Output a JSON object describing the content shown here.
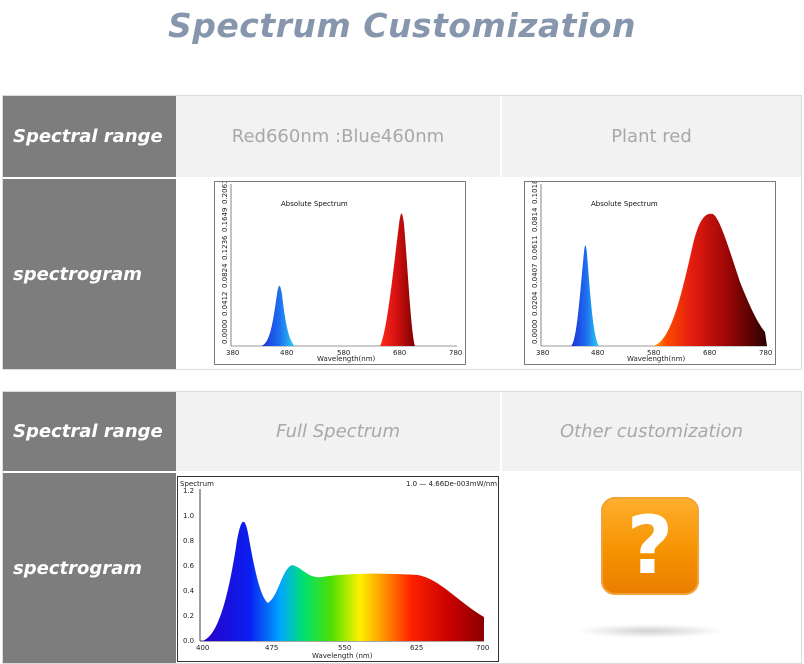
{
  "page": {
    "title": "Spectrum Customization"
  },
  "sections": [
    {
      "range_label": "Spectral range",
      "spectrogram_label": "spectrogram",
      "options": [
        {
          "range": "Red660nm :Blue460nm"
        },
        {
          "range": "Plant red"
        }
      ]
    },
    {
      "range_label": "Spectral range",
      "spectrogram_label": "spectrogram",
      "options": [
        {
          "range": "Full Spectrum"
        },
        {
          "range": "Other customization"
        }
      ]
    }
  ],
  "charts": {
    "red_blue": {
      "title": "Absolute Spectrum",
      "xlabel": "Wavelength(nm)",
      "xticks": [
        "380",
        "480",
        "580",
        "680",
        "780"
      ],
      "yticks": [
        "0.0000",
        "0.0412",
        "0.0824",
        "0.1236",
        "0.1649",
        "0.2061"
      ]
    },
    "plant_red": {
      "title": "Absolute Spectrum",
      "xlabel": "Wavelength(nm)",
      "xticks": [
        "380",
        "480",
        "580",
        "680",
        "780"
      ],
      "yticks": [
        "0.0000",
        "0.0204",
        "0.0407",
        "0.0611",
        "0.0814",
        "0.1018"
      ]
    },
    "full_spectrum": {
      "title": "Spectrum",
      "legend": "1.0 — 4.66De-003mW/nm",
      "xlabel": "Wavelength (nm)",
      "xticks": [
        "400",
        "475",
        "550",
        "625",
        "700"
      ],
      "yticks": [
        "0.0",
        "0.2",
        "0.4",
        "0.6",
        "0.8",
        "1.0",
        "1.2"
      ]
    }
  },
  "colors": {
    "title": "#8596ad",
    "label_bg": "#7d7d7d",
    "range_bg": "#f2f2f2",
    "question_bg": "#f59300"
  },
  "icons": {
    "other": "question-icon"
  }
}
